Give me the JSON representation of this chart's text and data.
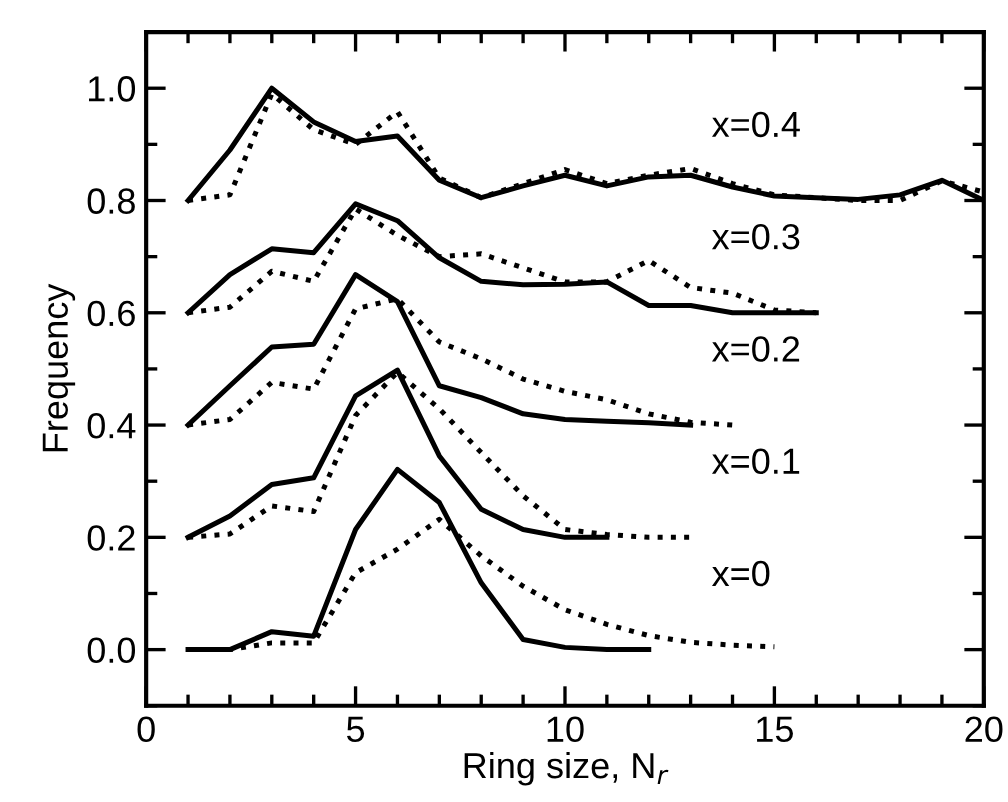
{
  "chart_data": {
    "type": "line",
    "xlabel": "Ring size, N$_{r}$",
    "ylabel": "Frequency",
    "xlim": [
      0,
      20
    ],
    "ylim": [
      -0.1,
      1.1
    ],
    "xticks": [
      0,
      {
        "value": 1,
        "label": null
      },
      {
        "value": 2,
        "label": null
      },
      {
        "value": 3,
        "label": null
      },
      {
        "value": 4,
        "label": null
      },
      5,
      {
        "value": 6,
        "label": null
      },
      {
        "value": 7,
        "label": null
      },
      {
        "value": 8,
        "label": null
      },
      {
        "value": 9,
        "label": null
      },
      10,
      {
        "value": 11,
        "label": null
      },
      {
        "value": 12,
        "label": null
      },
      {
        "value": 13,
        "label": null
      },
      {
        "value": 14,
        "label": null
      },
      15,
      {
        "value": 16,
        "label": null
      },
      {
        "value": 17,
        "label": null
      },
      {
        "value": 18,
        "label": null
      },
      {
        "value": 19,
        "label": null
      },
      20
    ],
    "yticks": [
      {
        "value": -0.1,
        "label": null
      },
      {
        "value": 0,
        "label": "0.0"
      },
      {
        "value": 0.1,
        "label": null
      },
      {
        "value": 0.2,
        "label": "0.2"
      },
      {
        "value": 0.3,
        "label": null
      },
      {
        "value": 0.4,
        "label": "0.4"
      },
      {
        "value": 0.5,
        "label": null
      },
      {
        "value": 0.6,
        "label": "0.6"
      },
      {
        "value": 0.7,
        "label": null
      },
      {
        "value": 0.8,
        "label": "0.8"
      },
      {
        "value": 0.9,
        "label": null
      },
      {
        "value": 1.0,
        "label": "1.0"
      },
      {
        "value": 1.1,
        "label": null
      }
    ],
    "grid": false,
    "legend": false,
    "marker": "none",
    "series": [
      {
        "color": "#000000",
        "line_style": "solid",
        "x": [
          1,
          2,
          3,
          4,
          5,
          6,
          7,
          8,
          9,
          10,
          11,
          12,
          13,
          14,
          15,
          16,
          17,
          18,
          19,
          20
        ],
        "values": [
          0.8,
          0.89,
          1.0,
          0.94,
          0.905,
          0.915,
          0.836,
          0.805,
          0.826,
          0.845,
          0.826,
          0.842,
          0.845,
          0.824,
          0.808,
          0.805,
          0.802,
          0.81,
          0.836,
          0.8
        ]
      },
      {
        "color": "#000000",
        "line_style": "dotted",
        "x": [
          1,
          2,
          3,
          4,
          5,
          6,
          7,
          8,
          9,
          10,
          11,
          12,
          13,
          14,
          15,
          16,
          17,
          18,
          19,
          20
        ],
        "values": [
          0.8,
          0.81,
          0.99,
          0.926,
          0.9,
          0.958,
          0.84,
          0.805,
          0.83,
          0.855,
          0.83,
          0.845,
          0.857,
          0.83,
          0.81,
          0.805,
          0.8,
          0.8,
          0.835,
          0.815
        ]
      },
      {
        "color": "#000000",
        "line_style": "solid",
        "x": [
          1,
          2,
          3,
          4,
          5,
          6,
          7,
          8,
          9,
          10,
          11,
          12,
          13,
          14,
          15,
          16
        ],
        "values": [
          0.6,
          0.668,
          0.714,
          0.707,
          0.794,
          0.764,
          0.698,
          0.656,
          0.65,
          0.651,
          0.655,
          0.613,
          0.613,
          0.6,
          0.6,
          0.6
        ]
      },
      {
        "color": "#000000",
        "line_style": "dotted",
        "x": [
          1,
          2,
          3,
          4,
          5,
          6,
          7,
          8,
          9,
          10,
          11,
          12,
          13,
          14,
          15,
          16
        ],
        "values": [
          0.6,
          0.61,
          0.674,
          0.656,
          0.785,
          0.738,
          0.7,
          0.705,
          0.68,
          0.655,
          0.655,
          0.693,
          0.645,
          0.635,
          0.605,
          0.6
        ]
      },
      {
        "color": "#000000",
        "line_style": "solid",
        "x": [
          1,
          2,
          3,
          4,
          5,
          6,
          7,
          8,
          9,
          10,
          11,
          12,
          13
        ],
        "values": [
          0.4,
          0.47,
          0.539,
          0.544,
          0.668,
          0.62,
          0.47,
          0.449,
          0.42,
          0.41,
          0.407,
          0.404,
          0.4
        ]
      },
      {
        "color": "#000000",
        "line_style": "dotted",
        "x": [
          1,
          2,
          3,
          4,
          5,
          6,
          7,
          8,
          9,
          10,
          11,
          12,
          13,
          14
        ],
        "values": [
          0.4,
          0.41,
          0.476,
          0.464,
          0.607,
          0.625,
          0.548,
          0.518,
          0.482,
          0.46,
          0.445,
          0.42,
          0.405,
          0.4
        ]
      },
      {
        "color": "#000000",
        "line_style": "solid",
        "x": [
          1,
          2,
          3,
          4,
          5,
          6,
          7,
          8,
          9,
          10,
          11
        ],
        "values": [
          0.2,
          0.238,
          0.294,
          0.306,
          0.452,
          0.498,
          0.345,
          0.25,
          0.214,
          0.2,
          0.2
        ]
      },
      {
        "color": "#000000",
        "line_style": "dotted",
        "x": [
          1,
          2,
          3,
          4,
          5,
          6,
          7,
          8,
          9,
          10,
          11,
          12,
          13
        ],
        "values": [
          0.2,
          0.206,
          0.256,
          0.246,
          0.417,
          0.494,
          0.429,
          0.351,
          0.274,
          0.214,
          0.205,
          0.2,
          0.2
        ]
      },
      {
        "color": "#000000",
        "line_style": "solid",
        "x": [
          1,
          2,
          3,
          4,
          5,
          6,
          7,
          8,
          9,
          10,
          11,
          12
        ],
        "values": [
          0,
          0,
          0.032,
          0.024,
          0.214,
          0.321,
          0.262,
          0.119,
          0.018,
          0.004,
          0,
          0
        ]
      },
      {
        "color": "#000000",
        "line_style": "dotted",
        "x": [
          1,
          2,
          3,
          4,
          5,
          6,
          7,
          8,
          9,
          10,
          11,
          12,
          13,
          14,
          15
        ],
        "values": [
          0,
          0,
          0.012,
          0.012,
          0.137,
          0.179,
          0.232,
          0.167,
          0.113,
          0.071,
          0.045,
          0.025,
          0.013,
          0.008,
          0.005
        ]
      }
    ],
    "annotations": [
      "x=0.4",
      "x=0.3",
      "x=0.2",
      "x=0.1",
      "x=0"
    ]
  }
}
